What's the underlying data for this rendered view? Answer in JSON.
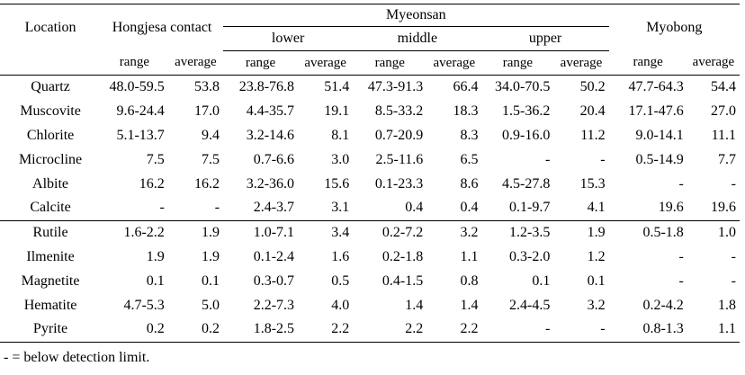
{
  "header": {
    "location": "Location",
    "hongjesa": "Hongjesa contact",
    "myeonsan": "Myeonsan",
    "myobong": "Myobong",
    "lower": "lower",
    "middle": "middle",
    "upper": "upper",
    "range": "range",
    "average": "average"
  },
  "rows": [
    [
      "Quartz",
      "48.0-59.5",
      "53.8",
      "23.8-76.8",
      "51.4",
      "47.3-91.3",
      "66.4",
      "34.0-70.5",
      "50.2",
      "47.7-64.3",
      "54.4"
    ],
    [
      "Muscovite",
      "9.6-24.4",
      "17.0",
      "4.4-35.7",
      "19.1",
      "8.5-33.2",
      "18.3",
      "1.5-36.2",
      "20.4",
      "17.1-47.6",
      "27.0"
    ],
    [
      "Chlorite",
      "5.1-13.7",
      "9.4",
      "3.2-14.6",
      "8.1",
      "0.7-20.9",
      "8.3",
      "0.9-16.0",
      "11.2",
      "9.0-14.1",
      "11.1"
    ],
    [
      "Microcline",
      "7.5",
      "7.5",
      "0.7-6.6",
      "3.0",
      "2.5-11.6",
      "6.5",
      "-",
      "-",
      "0.5-14.9",
      "7.7"
    ],
    [
      "Albite",
      "16.2",
      "16.2",
      "3.2-36.0",
      "15.6",
      "0.1-23.3",
      "8.6",
      "4.5-27.8",
      "15.3",
      "-",
      "-"
    ],
    [
      "Calcite",
      "-",
      "-",
      "2.4-3.7",
      "3.1",
      "0.4",
      "0.4",
      "0.1-9.7",
      "4.1",
      "19.6",
      "19.6"
    ],
    [
      "Rutile",
      "1.6-2.2",
      "1.9",
      "1.0-7.1",
      "3.4",
      "0.2-7.2",
      "3.2",
      "1.2-3.5",
      "1.9",
      "0.5-1.8",
      "1.0"
    ],
    [
      "Ilmenite",
      "1.9",
      "1.9",
      "0.1-2.4",
      "1.6",
      "0.2-1.8",
      "1.1",
      "0.3-2.0",
      "1.2",
      "-",
      "-"
    ],
    [
      "Magnetite",
      "0.1",
      "0.1",
      "0.3-0.7",
      "0.5",
      "0.4-1.5",
      "0.8",
      "0.1",
      "0.1",
      "-",
      "-"
    ],
    [
      "Hematite",
      "4.7-5.3",
      "5.0",
      "2.2-7.3",
      "4.0",
      "1.4",
      "1.4",
      "2.4-4.5",
      "3.2",
      "0.2-4.2",
      "1.8"
    ],
    [
      "Pyrite",
      "0.2",
      "0.2",
      "1.8-2.5",
      "2.2",
      "2.2",
      "2.2",
      "-",
      "-",
      "0.8-1.3",
      "1.1"
    ]
  ],
  "footnote": "- = below detection limit."
}
